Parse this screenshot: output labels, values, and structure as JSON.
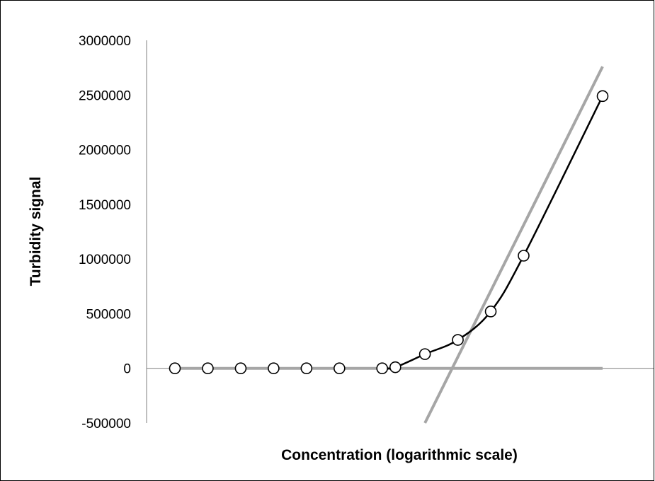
{
  "chart_data": {
    "type": "scatter",
    "title": "",
    "xlabel": "Concentration (logarithmic scale)",
    "ylabel": "Turbidity signal",
    "x_scale": "log",
    "x_tick_labels_shown": false,
    "ylim": [
      -500000,
      3000000
    ],
    "yticks": [
      -500000,
      0,
      500000,
      1000000,
      1500000,
      2000000,
      2500000,
      3000000
    ],
    "ytick_labels": [
      "-500000",
      "0",
      "500000",
      "1000000",
      "1500000",
      "2000000",
      "2500000",
      "3000000"
    ],
    "grid": false,
    "legend": "none",
    "series": [
      {
        "kind": "markers",
        "marker": "open-circle",
        "color": "#000000",
        "points": [
          {
            "x": 1,
            "y": 0
          },
          {
            "x": 2,
            "y": 0
          },
          {
            "x": 3,
            "y": 0
          },
          {
            "x": 4,
            "y": 0
          },
          {
            "x": 5,
            "y": 0
          },
          {
            "x": 6,
            "y": 0
          },
          {
            "x": 7.3,
            "y": 0
          },
          {
            "x": 7.7,
            "y": 10000
          },
          {
            "x": 8.6,
            "y": 130000
          },
          {
            "x": 9.6,
            "y": 260000
          },
          {
            "x": 10.6,
            "y": 520000
          },
          {
            "x": 11.6,
            "y": 1030000
          },
          {
            "x": 14.0,
            "y": 2490000
          }
        ]
      },
      {
        "kind": "smooth-line",
        "color": "#000000",
        "points": [
          {
            "x": 7.3,
            "y": 0
          },
          {
            "x": 7.7,
            "y": 10000
          },
          {
            "x": 8.6,
            "y": 130000
          },
          {
            "x": 9.6,
            "y": 260000
          },
          {
            "x": 10.6,
            "y": 520000
          },
          {
            "x": 11.6,
            "y": 1030000
          },
          {
            "x": 14.0,
            "y": 2490000
          }
        ]
      },
      {
        "kind": "baseline",
        "color": "#a6a6a6",
        "points": [
          {
            "x": 1,
            "y": 0
          },
          {
            "x": 14.0,
            "y": 0
          }
        ]
      },
      {
        "kind": "tangent",
        "color": "#a6a6a6",
        "points": [
          {
            "x": 8.6,
            "y": -500000
          },
          {
            "x": 14.0,
            "y": 2760000
          }
        ]
      }
    ]
  }
}
